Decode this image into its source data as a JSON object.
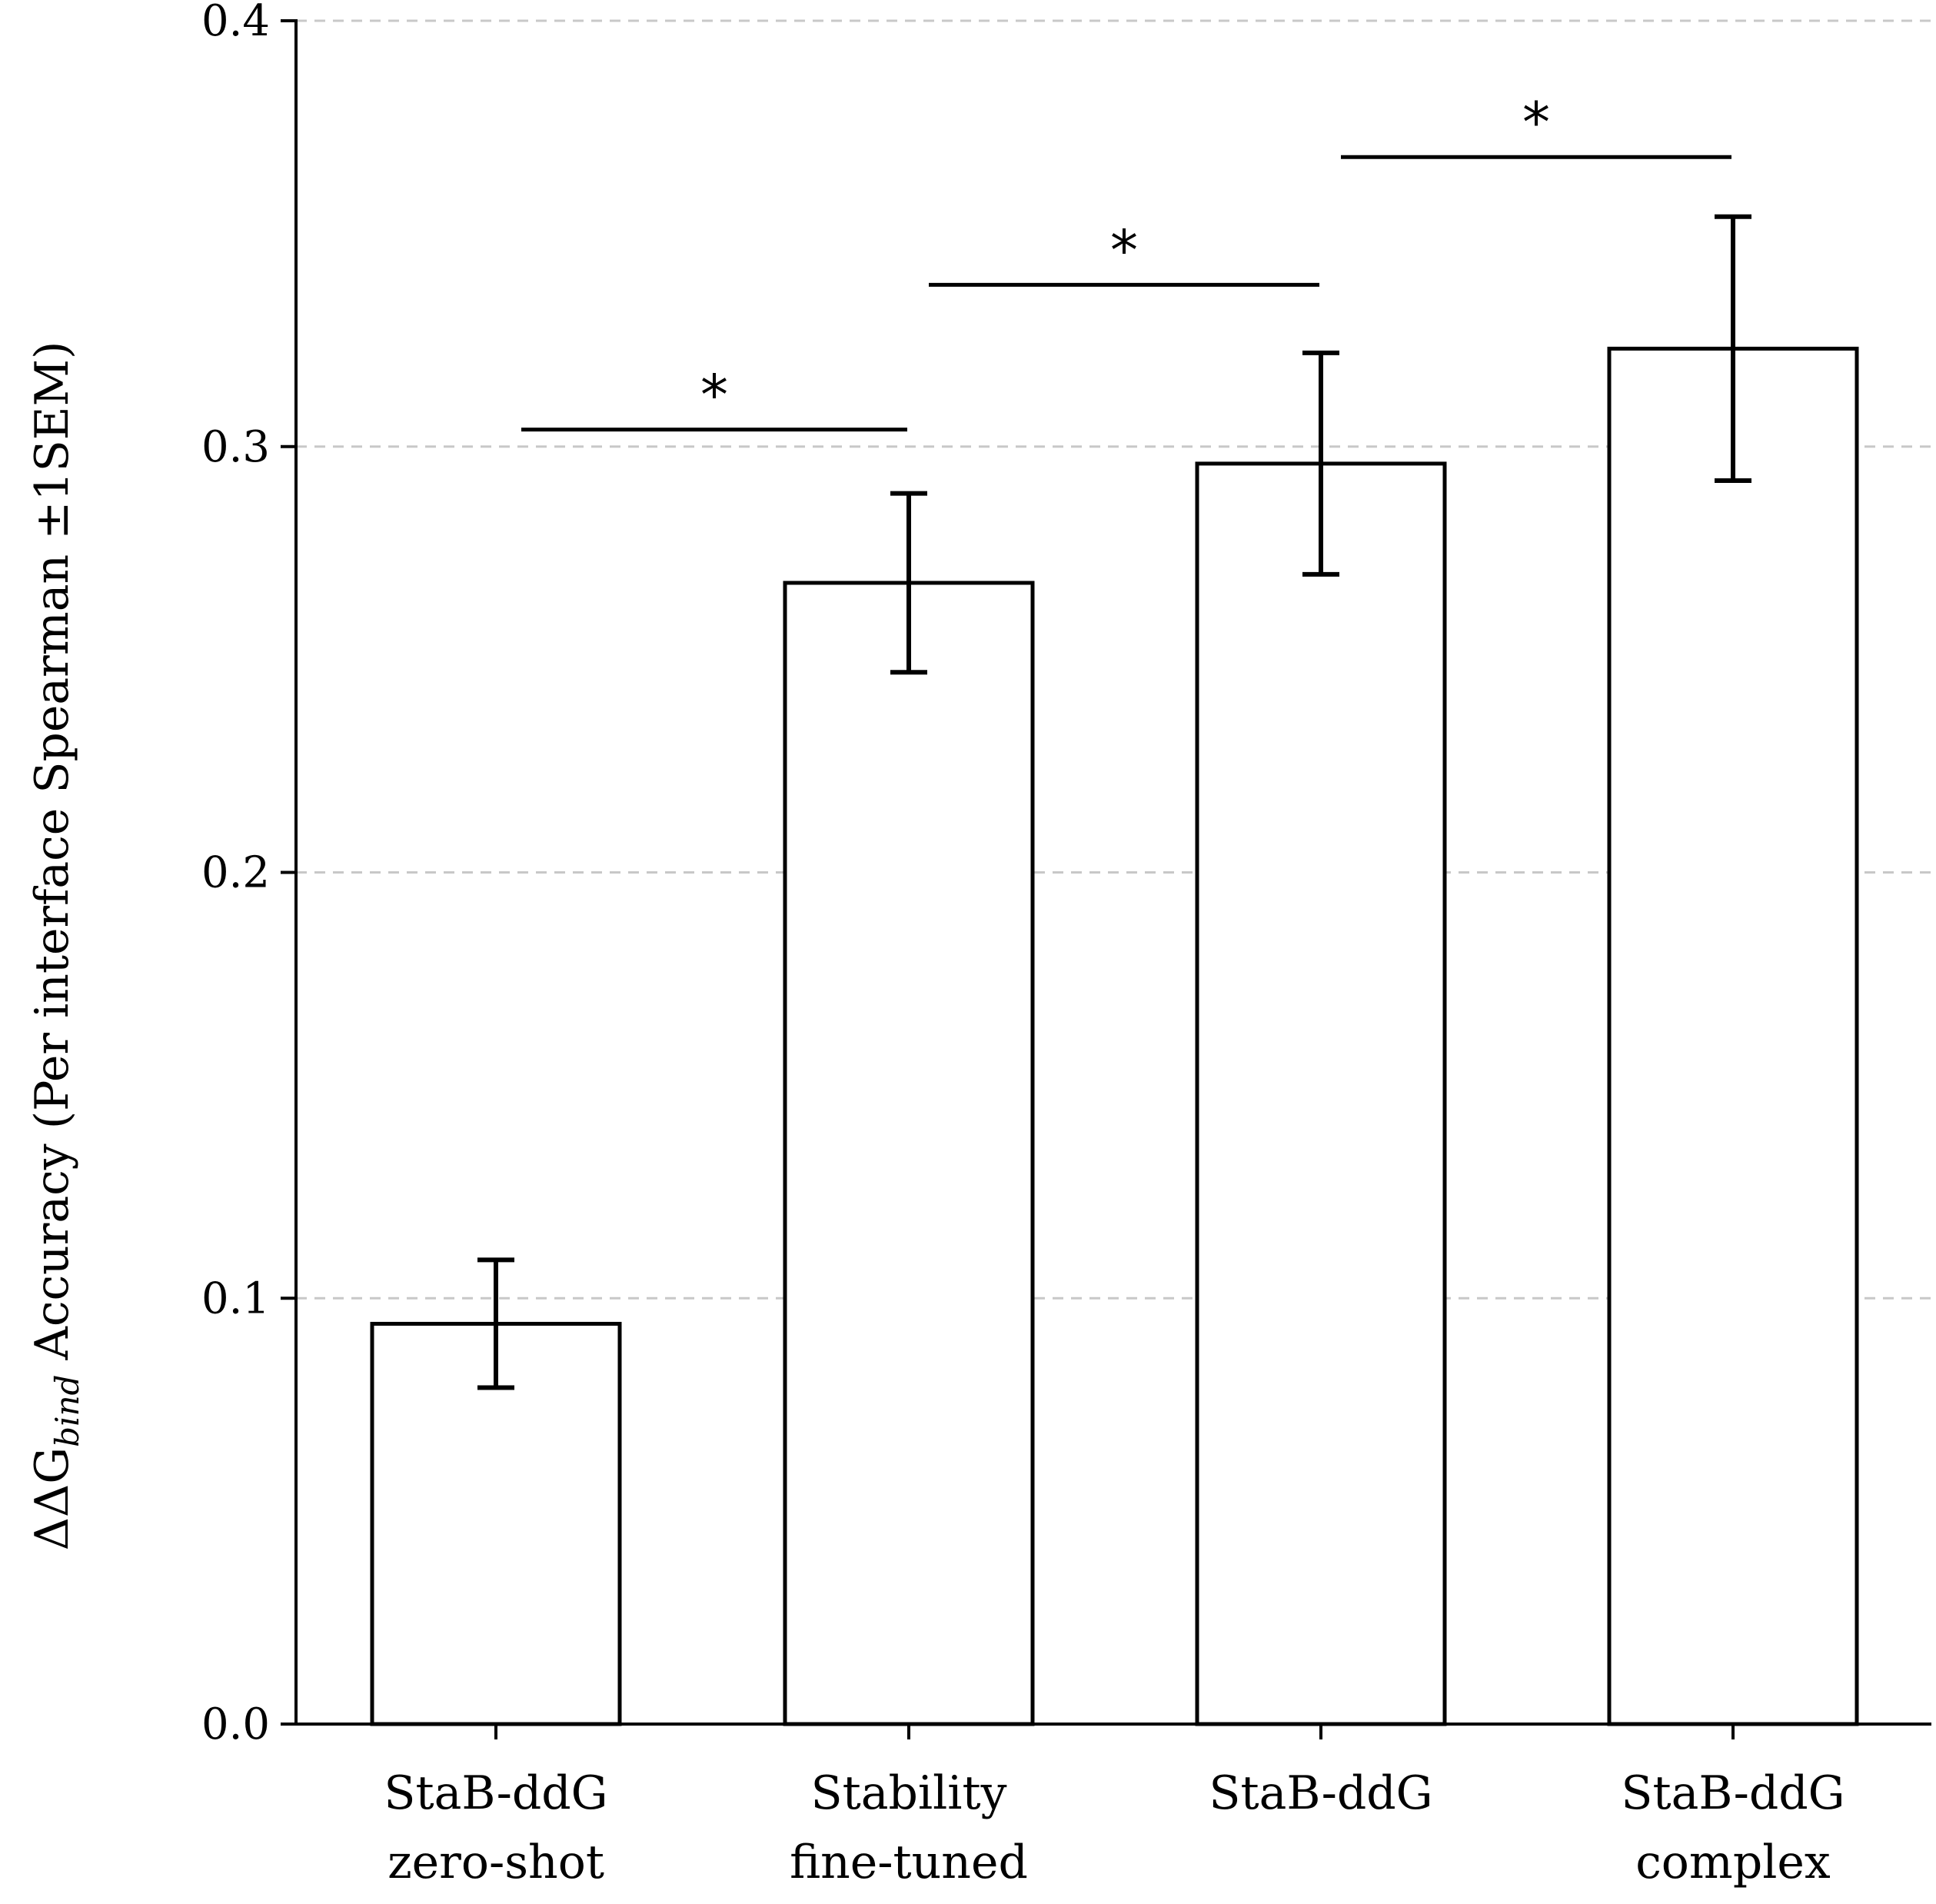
{
  "chart_data": {
    "type": "bar",
    "ylabel_prefix": "ΔΔG",
    "ylabel_sub": "bind",
    "ylabel_suffix": " Accuracy (Per interface Spearman ±1SEM)",
    "ylim": [
      0,
      0.4
    ],
    "yticks": [
      {
        "value": 0.0,
        "label": "0.0"
      },
      {
        "value": 0.1,
        "label": "0.1"
      },
      {
        "value": 0.2,
        "label": "0.2"
      },
      {
        "value": 0.3,
        "label": "0.3"
      },
      {
        "value": 0.4,
        "label": "0.4"
      }
    ],
    "grid": "y-dashed",
    "categories": [
      {
        "line1": "StaB-ddG",
        "line2": "zero-shot"
      },
      {
        "line1": "Stability",
        "line2": "fine-tuned"
      },
      {
        "line1": "StaB-ddG",
        "line2": ""
      },
      {
        "line1": "StaB-ddG",
        "line2": "complex"
      }
    ],
    "values": [
      0.094,
      0.268,
      0.296,
      0.323
    ],
    "error_low": [
      0.079,
      0.247,
      0.27,
      0.292
    ],
    "error_high": [
      0.109,
      0.289,
      0.322,
      0.354
    ],
    "significance": [
      {
        "from": 0,
        "to": 1,
        "y": 0.304,
        "label": "*"
      },
      {
        "from": 1,
        "to": 2,
        "y": 0.338,
        "label": "*"
      },
      {
        "from": 2,
        "to": 3,
        "y": 0.368,
        "label": "*"
      }
    ]
  }
}
